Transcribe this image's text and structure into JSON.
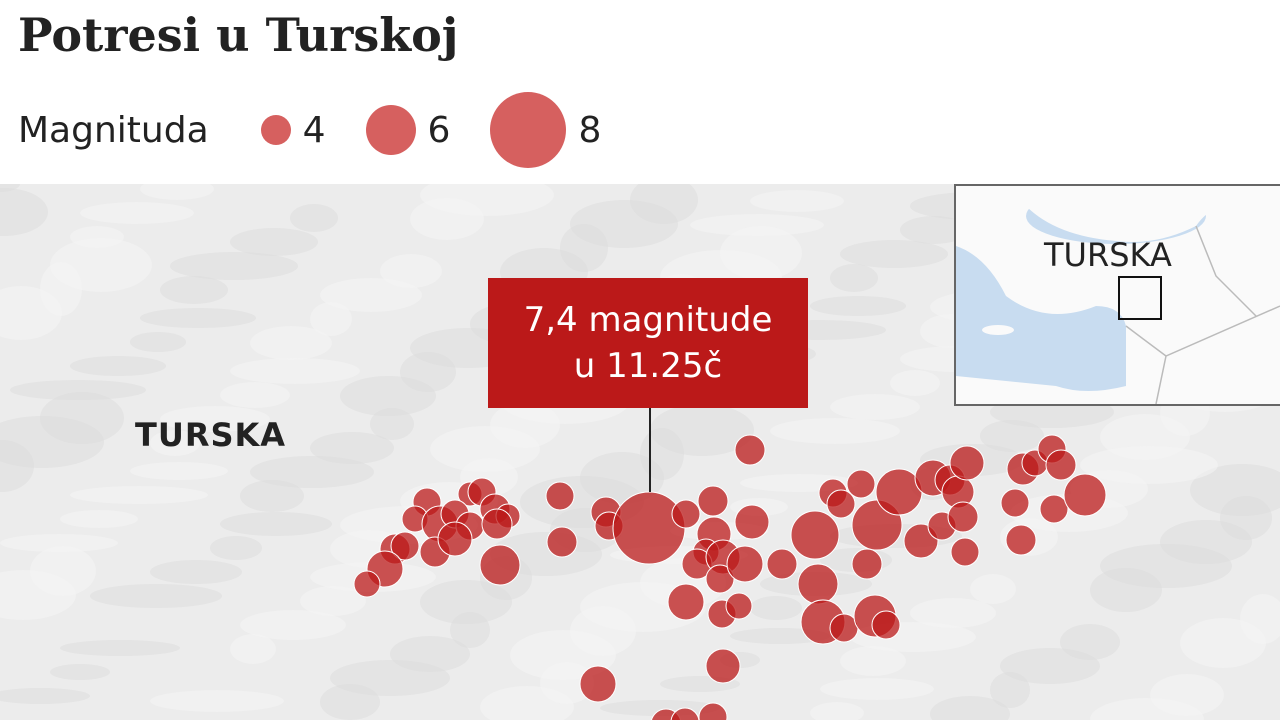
{
  "title": "Potresi u Turskoj",
  "legend": {
    "label": "Magnituda",
    "items": [
      {
        "value": "4"
      },
      {
        "value": "6"
      },
      {
        "value": "8"
      }
    ]
  },
  "map": {
    "country_label": "TURSKA",
    "callout": {
      "line1": "7,4 magnitude",
      "line2": "u 11.25č"
    },
    "inset": {
      "label": "TURSKA"
    },
    "colors": {
      "quake": "#d6605f",
      "callout": "#bb1919",
      "water": "#c8dcf0"
    }
  }
}
